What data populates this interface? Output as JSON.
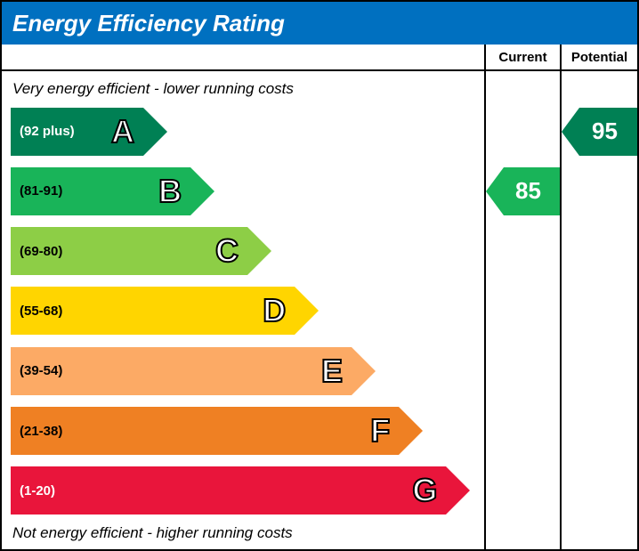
{
  "title": "Energy Efficiency Rating",
  "title_bar_color": "#0070c0",
  "title_text_color": "#ffffff",
  "columns": {
    "current": "Current",
    "potential": "Potential"
  },
  "top_text": "Very energy efficient - lower running costs",
  "bottom_text": "Not energy efficient - higher running costs",
  "bands": [
    {
      "letter": "A",
      "range": "(92 plus)",
      "color": "#008054",
      "width_pct": 28,
      "text_color": "#ffffff"
    },
    {
      "letter": "B",
      "range": "(81-91)",
      "color": "#19b459",
      "width_pct": 38,
      "text_color": "#000000"
    },
    {
      "letter": "C",
      "range": "(69-80)",
      "color": "#8dce46",
      "width_pct": 50,
      "text_color": "#000000"
    },
    {
      "letter": "D",
      "range": "(55-68)",
      "color": "#ffd500",
      "width_pct": 60,
      "text_color": "#000000"
    },
    {
      "letter": "E",
      "range": "(39-54)",
      "color": "#fcaa65",
      "width_pct": 72,
      "text_color": "#000000"
    },
    {
      "letter": "F",
      "range": "(21-38)",
      "color": "#ef8023",
      "width_pct": 82,
      "text_color": "#000000"
    },
    {
      "letter": "G",
      "range": "(1-20)",
      "color": "#e9153b",
      "width_pct": 92,
      "text_color": "#ffffff"
    }
  ],
  "current": {
    "value": "85",
    "band_index": 1,
    "color": "#19b459"
  },
  "potential": {
    "value": "95",
    "band_index": 0,
    "color": "#008054"
  },
  "letter_outline_color": "#000000",
  "letter_fill_color": "#ffffff",
  "border_color": "#000000",
  "background_color": "#ffffff",
  "font_family": "Arial"
}
